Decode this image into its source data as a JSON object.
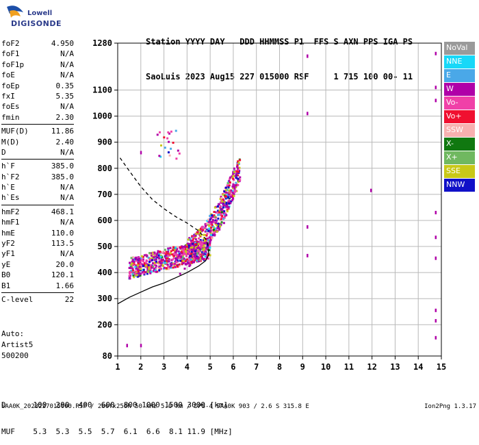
{
  "logo": {
    "line1": "Lowell",
    "line2": "DIGISONDE"
  },
  "header": {
    "line1": "Station YYYY DAY   DDD HHMMSS P1  FFS S AXN PPS IGA PS",
    "line2": "SaoLuis 2023 Aug15 227 015000 RSF     1 715 100 00- 11"
  },
  "params": {
    "group1": [
      {
        "k": "foF2",
        "v": "4.950"
      },
      {
        "k": "foF1",
        "v": "N/A"
      },
      {
        "k": "foF1p",
        "v": "N/A"
      },
      {
        "k": "foE",
        "v": "N/A"
      },
      {
        "k": "foEp",
        "v": "0.35"
      },
      {
        "k": "fxI",
        "v": "5.35"
      },
      {
        "k": "foEs",
        "v": "N/A"
      },
      {
        "k": "fmin",
        "v": "2.30"
      }
    ],
    "group2": [
      {
        "k": "MUF(D)",
        "v": "11.86"
      },
      {
        "k": "M(D)",
        "v": "2.40"
      },
      {
        "k": "D",
        "v": "N/A"
      }
    ],
    "group3": [
      {
        "k": "h`F",
        "v": "385.0"
      },
      {
        "k": "h`F2",
        "v": "385.0"
      },
      {
        "k": "h`E",
        "v": "N/A"
      },
      {
        "k": "h`Es",
        "v": "N/A"
      }
    ],
    "group4": [
      {
        "k": "hmF2",
        "v": "468.1"
      },
      {
        "k": "hmF1",
        "v": "N/A"
      },
      {
        "k": "hmE",
        "v": "110.0"
      },
      {
        "k": "yF2",
        "v": "113.5"
      },
      {
        "k": "yF1",
        "v": "N/A"
      },
      {
        "k": "yE",
        "v": "20.0"
      },
      {
        "k": "B0",
        "v": "120.1"
      },
      {
        "k": "B1",
        "v": "1.66"
      }
    ],
    "group5": [
      {
        "k": "C-level",
        "v": "22"
      }
    ]
  },
  "auto": {
    "line1": "Auto:",
    "line2": "Artist5",
    "line3": "500200"
  },
  "bottom": {
    "d_row": "D      100  200  400  600  800 1000 1500 3000 [km]",
    "muf_row": "MUF    5.3  5.3  5.5  5.7  6.1  6.6  8.1 11.9 [MHz]"
  },
  "footer": {
    "left": "SAA0K_2023227015000.RSF / 280fx256h 50 kHz 5.0 km / DPS-4 SAA0K 903 / 2.6 S 315.8 E",
    "right": "Ion2Png 1.3.17"
  },
  "legend": [
    {
      "label": "NoVal",
      "color": "#9a9a9a"
    },
    {
      "label": "NNE",
      "color": "#18d8f8"
    },
    {
      "label": "E",
      "color": "#4aa8e8"
    },
    {
      "label": "W",
      "color": "#b000a8"
    },
    {
      "label": "Vo-",
      "color": "#f040a8"
    },
    {
      "label": "Vo+",
      "color": "#f01030"
    },
    {
      "label": "SSW",
      "color": "#f8b0b0"
    },
    {
      "label": "X-",
      "color": "#107810"
    },
    {
      "label": "X+",
      "color": "#70b860"
    },
    {
      "label": "SSE",
      "color": "#c8c818"
    },
    {
      "label": "NNW",
      "color": "#1010c8"
    }
  ],
  "chart_data": {
    "type": "scatter",
    "x_ticks": [
      "1",
      "2",
      "3",
      "4",
      "5",
      "6",
      "7",
      "8",
      "9",
      "10",
      "11",
      "12",
      "13",
      "14",
      "15"
    ],
    "y_ticks": [
      "80",
      "200",
      "300",
      "400",
      "500",
      "600",
      "700",
      "800",
      "900",
      "1000",
      "1100",
      "1280"
    ],
    "xlim": [
      1,
      15
    ],
    "ylim": [
      80,
      1280
    ],
    "grid": true,
    "traces": {
      "ordinary_trace": [
        [
          3.7,
          395
        ],
        [
          3.9,
          415
        ],
        [
          4.1,
          425
        ],
        [
          4.3,
          440
        ],
        [
          4.5,
          455
        ],
        [
          4.7,
          470
        ],
        [
          4.8,
          480
        ],
        [
          4.9,
          495
        ],
        [
          5.0,
          520
        ],
        [
          5.2,
          545
        ],
        [
          5.4,
          565
        ],
        [
          5.6,
          590
        ],
        [
          5.7,
          620
        ],
        [
          5.8,
          650
        ],
        [
          5.9,
          690
        ],
        [
          6.0,
          730
        ],
        [
          6.1,
          770
        ],
        [
          6.2,
          800
        ]
      ],
      "profile_solid": [
        [
          1.0,
          280
        ],
        [
          1.5,
          305
        ],
        [
          2.0,
          325
        ],
        [
          2.5,
          345
        ],
        [
          3.0,
          360
        ],
        [
          3.5,
          380
        ],
        [
          4.0,
          400
        ],
        [
          4.5,
          425
        ],
        [
          4.8,
          445
        ],
        [
          4.95,
          470
        ],
        [
          4.9,
          490
        ]
      ],
      "profile_dashed": [
        [
          1.1,
          840
        ],
        [
          1.5,
          790
        ],
        [
          2.0,
          730
        ],
        [
          2.5,
          680
        ],
        [
          3.0,
          645
        ],
        [
          3.5,
          615
        ],
        [
          4.0,
          590
        ],
        [
          4.5,
          560
        ],
        [
          4.8,
          530
        ],
        [
          4.95,
          495
        ]
      ]
    },
    "clusters": [
      {
        "xmin": 1.5,
        "xmax": 5.0,
        "ymin": 370,
        "ymax": 520,
        "n": 700
      },
      {
        "xmin": 4.0,
        "xmax": 6.3,
        "ymin": 480,
        "ymax": 820,
        "n": 500
      },
      {
        "xmin": 2.6,
        "xmax": 3.7,
        "ymin": 820,
        "ymax": 950,
        "n": 40
      }
    ],
    "isolated_points": [
      [
        9.2,
        1230
      ],
      [
        9.2,
        1010
      ],
      [
        9.2,
        575
      ],
      [
        9.2,
        465
      ],
      [
        11.95,
        715
      ],
      [
        14.75,
        1240
      ],
      [
        14.75,
        1110
      ],
      [
        14.75,
        1060
      ],
      [
        14.75,
        630
      ],
      [
        14.75,
        535
      ],
      [
        14.75,
        455
      ],
      [
        14.75,
        255
      ],
      [
        14.75,
        215
      ],
      [
        14.75,
        150
      ],
      [
        1.4,
        120
      ],
      [
        2.0,
        120
      ],
      [
        2.0,
        860
      ]
    ]
  }
}
